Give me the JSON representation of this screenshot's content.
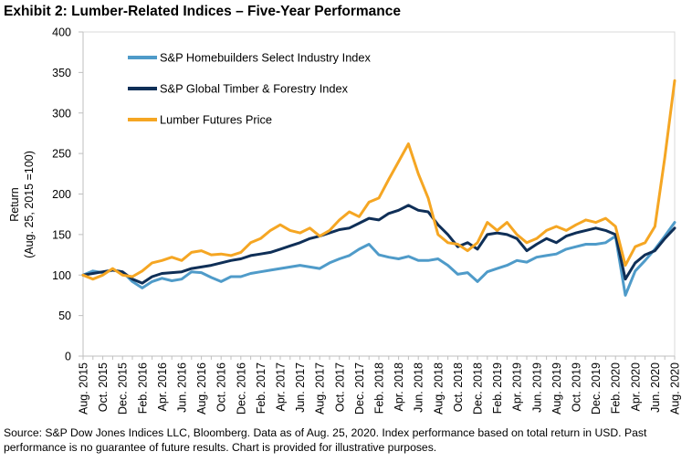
{
  "chart_data": {
    "type": "line",
    "title": "Exhibit 2: Lumber-Related Indices – Five-Year Performance",
    "ylabel_line1": "Return",
    "ylabel_line2": "(Aug. 25, 2015 =100)",
    "xlabel": "",
    "ylim": [
      0,
      400
    ],
    "yticks": [
      0,
      50,
      100,
      150,
      200,
      250,
      300,
      350,
      400
    ],
    "grid": false,
    "legend_position": "top-left",
    "x_tick_labels": [
      "Aug. 2015",
      "Oct. 2015",
      "Dec. 2015",
      "Feb. 2016",
      "Apr. 2016",
      "Jun. 2016",
      "Aug. 2016",
      "Oct. 2016",
      "Dec. 2016",
      "Feb. 2017",
      "Apr. 2017",
      "Jun. 2017",
      "Aug. 2017",
      "Oct. 2017",
      "Dec. 2017",
      "Feb. 2018",
      "Apr. 2018",
      "Jun. 2018",
      "Aug. 2018",
      "Oct. 2018",
      "Dec. 2018",
      "Feb. 2019",
      "Apr. 2019",
      "Jun. 2019",
      "Aug. 2019",
      "Oct. 2019",
      "Dec. 2019",
      "Feb. 2020",
      "Apr. 2020",
      "Jun. 2020",
      "Aug. 2020"
    ],
    "series": [
      {
        "name": "S&P Homebuilders Select Industry Index",
        "color": "#4f9bc9",
        "points": [
          [
            "Aug. 2015",
            100
          ],
          [
            "Sep. 2015",
            105
          ],
          [
            "Oct. 2015",
            103
          ],
          [
            "Nov. 2015",
            106
          ],
          [
            "Dec. 2015",
            104
          ],
          [
            "Jan. 2016",
            92
          ],
          [
            "Feb. 2016",
            84
          ],
          [
            "Mar. 2016",
            92
          ],
          [
            "Apr. 2016",
            96
          ],
          [
            "May 2016",
            93
          ],
          [
            "Jun. 2016",
            95
          ],
          [
            "Jul. 2016",
            104
          ],
          [
            "Aug. 2016",
            103
          ],
          [
            "Sep. 2016",
            97
          ],
          [
            "Oct. 2016",
            92
          ],
          [
            "Nov. 2016",
            98
          ],
          [
            "Dec. 2016",
            98
          ],
          [
            "Jan. 2017",
            102
          ],
          [
            "Feb. 2017",
            104
          ],
          [
            "Mar. 2017",
            106
          ],
          [
            "Apr. 2017",
            108
          ],
          [
            "May 2017",
            110
          ],
          [
            "Jun. 2017",
            112
          ],
          [
            "Jul. 2017",
            110
          ],
          [
            "Aug. 2017",
            108
          ],
          [
            "Sep. 2017",
            115
          ],
          [
            "Oct. 2017",
            120
          ],
          [
            "Nov. 2017",
            124
          ],
          [
            "Dec. 2017",
            132
          ],
          [
            "Jan. 2018",
            138
          ],
          [
            "Feb. 2018",
            125
          ],
          [
            "Mar. 2018",
            122
          ],
          [
            "Apr. 2018",
            120
          ],
          [
            "May 2018",
            123
          ],
          [
            "Jun. 2018",
            118
          ],
          [
            "Jul. 2018",
            118
          ],
          [
            "Aug. 2018",
            120
          ],
          [
            "Sep. 2018",
            112
          ],
          [
            "Oct. 2018",
            101
          ],
          [
            "Nov. 2018",
            103
          ],
          [
            "Dec. 2018",
            92
          ],
          [
            "Jan. 2019",
            104
          ],
          [
            "Feb. 2019",
            108
          ],
          [
            "Mar. 2019",
            112
          ],
          [
            "Apr. 2019",
            118
          ],
          [
            "May 2019",
            116
          ],
          [
            "Jun. 2019",
            122
          ],
          [
            "Jul. 2019",
            124
          ],
          [
            "Aug. 2019",
            126
          ],
          [
            "Sep. 2019",
            132
          ],
          [
            "Oct. 2019",
            135
          ],
          [
            "Nov. 2019",
            138
          ],
          [
            "Dec. 2019",
            138
          ],
          [
            "Jan. 2020",
            140
          ],
          [
            "Feb. 2020",
            148
          ],
          [
            "Mar. 2020",
            75
          ],
          [
            "Apr. 2020",
            105
          ],
          [
            "May 2020",
            118
          ],
          [
            "Jun. 2020",
            132
          ],
          [
            "Jul. 2020",
            148
          ],
          [
            "Aug. 2020",
            165
          ]
        ]
      },
      {
        "name": "S&P Global Timber & Forestry Index",
        "color": "#0f2f57",
        "points": [
          [
            "Aug. 2015",
            100
          ],
          [
            "Sep. 2015",
            102
          ],
          [
            "Oct. 2015",
            104
          ],
          [
            "Nov. 2015",
            106
          ],
          [
            "Dec. 2015",
            104
          ],
          [
            "Jan. 2016",
            95
          ],
          [
            "Feb. 2016",
            90
          ],
          [
            "Mar. 2016",
            98
          ],
          [
            "Apr. 2016",
            102
          ],
          [
            "May 2016",
            103
          ],
          [
            "Jun. 2016",
            104
          ],
          [
            "Jul. 2016",
            108
          ],
          [
            "Aug. 2016",
            110
          ],
          [
            "Sep. 2016",
            112
          ],
          [
            "Oct. 2016",
            115
          ],
          [
            "Nov. 2016",
            118
          ],
          [
            "Dec. 2016",
            120
          ],
          [
            "Jan. 2017",
            124
          ],
          [
            "Feb. 2017",
            126
          ],
          [
            "Mar. 2017",
            128
          ],
          [
            "Apr. 2017",
            132
          ],
          [
            "May 2017",
            136
          ],
          [
            "Jun. 2017",
            140
          ],
          [
            "Jul. 2017",
            145
          ],
          [
            "Aug. 2017",
            148
          ],
          [
            "Sep. 2017",
            152
          ],
          [
            "Oct. 2017",
            156
          ],
          [
            "Nov. 2017",
            158
          ],
          [
            "Dec. 2017",
            164
          ],
          [
            "Jan. 2018",
            170
          ],
          [
            "Feb. 2018",
            168
          ],
          [
            "Mar. 2018",
            176
          ],
          [
            "Apr. 2018",
            180
          ],
          [
            "May 2018",
            186
          ],
          [
            "Jun. 2018",
            180
          ],
          [
            "Jul. 2018",
            178
          ],
          [
            "Aug. 2018",
            162
          ],
          [
            "Sep. 2018",
            150
          ],
          [
            "Oct. 2018",
            135
          ],
          [
            "Nov. 2018",
            140
          ],
          [
            "Dec. 2018",
            132
          ],
          [
            "Jan. 2019",
            150
          ],
          [
            "Feb. 2019",
            152
          ],
          [
            "Mar. 2019",
            150
          ],
          [
            "Apr. 2019",
            145
          ],
          [
            "May 2019",
            130
          ],
          [
            "Jun. 2019",
            138
          ],
          [
            "Jul. 2019",
            145
          ],
          [
            "Aug. 2019",
            140
          ],
          [
            "Sep. 2019",
            148
          ],
          [
            "Oct. 2019",
            152
          ],
          [
            "Nov. 2019",
            155
          ],
          [
            "Dec. 2019",
            158
          ],
          [
            "Jan. 2020",
            155
          ],
          [
            "Feb. 2020",
            150
          ],
          [
            "Mar. 2020",
            95
          ],
          [
            "Apr. 2020",
            115
          ],
          [
            "May 2020",
            125
          ],
          [
            "Jun. 2020",
            130
          ],
          [
            "Jul. 2020",
            145
          ],
          [
            "Aug. 2020",
            158
          ]
        ]
      },
      {
        "name": "Lumber Futures Price",
        "color": "#f5a623",
        "points": [
          [
            "Aug. 2015",
            100
          ],
          [
            "Sep. 2015",
            95
          ],
          [
            "Oct. 2015",
            100
          ],
          [
            "Nov. 2015",
            108
          ],
          [
            "Dec. 2015",
            100
          ],
          [
            "Jan. 2016",
            98
          ],
          [
            "Feb. 2016",
            105
          ],
          [
            "Mar. 2016",
            115
          ],
          [
            "Apr. 2016",
            118
          ],
          [
            "May 2016",
            122
          ],
          [
            "Jun. 2016",
            118
          ],
          [
            "Jul. 2016",
            128
          ],
          [
            "Aug. 2016",
            130
          ],
          [
            "Sep. 2016",
            125
          ],
          [
            "Oct. 2016",
            126
          ],
          [
            "Nov. 2016",
            124
          ],
          [
            "Dec. 2016",
            128
          ],
          [
            "Jan. 2017",
            140
          ],
          [
            "Feb. 2017",
            145
          ],
          [
            "Mar. 2017",
            155
          ],
          [
            "Apr. 2017",
            162
          ],
          [
            "May 2017",
            155
          ],
          [
            "Jun. 2017",
            152
          ],
          [
            "Jul. 2017",
            158
          ],
          [
            "Aug. 2017",
            148
          ],
          [
            "Sep. 2017",
            155
          ],
          [
            "Oct. 2017",
            168
          ],
          [
            "Nov. 2017",
            178
          ],
          [
            "Dec. 2017",
            172
          ],
          [
            "Jan. 2018",
            190
          ],
          [
            "Feb. 2018",
            195
          ],
          [
            "Mar. 2018",
            218
          ],
          [
            "Apr. 2018",
            240
          ],
          [
            "May 2018",
            262
          ],
          [
            "Jun. 2018",
            225
          ],
          [
            "Jul. 2018",
            195
          ],
          [
            "Aug. 2018",
            150
          ],
          [
            "Sep. 2018",
            140
          ],
          [
            "Oct. 2018",
            138
          ],
          [
            "Nov. 2018",
            130
          ],
          [
            "Dec. 2018",
            140
          ],
          [
            "Jan. 2019",
            165
          ],
          [
            "Feb. 2019",
            155
          ],
          [
            "Mar. 2019",
            165
          ],
          [
            "Apr. 2019",
            150
          ],
          [
            "May 2019",
            140
          ],
          [
            "Jun. 2019",
            145
          ],
          [
            "Jul. 2019",
            155
          ],
          [
            "Aug. 2019",
            160
          ],
          [
            "Sep. 2019",
            155
          ],
          [
            "Oct. 2019",
            162
          ],
          [
            "Nov. 2019",
            168
          ],
          [
            "Dec. 2019",
            165
          ],
          [
            "Jan. 2020",
            170
          ],
          [
            "Feb. 2020",
            160
          ],
          [
            "Mar. 2020",
            112
          ],
          [
            "Apr. 2020",
            135
          ],
          [
            "May 2020",
            140
          ],
          [
            "Jun. 2020",
            160
          ],
          [
            "Jul. 2020",
            245
          ],
          [
            "Aug. 2020",
            340
          ]
        ]
      }
    ]
  },
  "source_note": "Source: S&P Dow Jones Indices LLC, Bloomberg. Data as of Aug. 25, 2020. Index performance based on total return in USD. Past performance is no guarantee of future results. Chart is provided for illustrative purposes."
}
